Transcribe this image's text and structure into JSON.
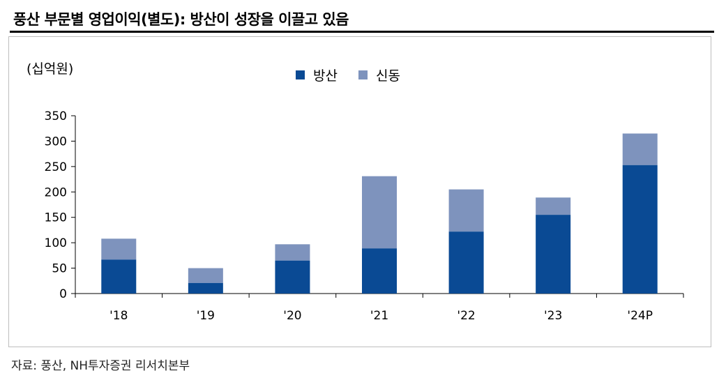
{
  "title": "풍산 부문별 영업이익(별도): 방산이 성장을 이끌고 있음",
  "source": "자료: 풍산, NH투자증권 리서치본부",
  "colors": {
    "defense": "#0a4a94",
    "copper": "#7e93bd"
  },
  "chart_data": {
    "type": "bar",
    "stacked": true,
    "unit_label": "(십억원)",
    "categories": [
      "'18",
      "'19",
      "'20",
      "'21",
      "'22",
      "'23",
      "'24P"
    ],
    "series": [
      {
        "name": "방산",
        "values": [
          67,
          21,
          65,
          89,
          122,
          155,
          253
        ]
      },
      {
        "name": "신동",
        "values": [
          41,
          29,
          32,
          142,
          83,
          34,
          62
        ]
      }
    ],
    "ylim": [
      0,
      350
    ],
    "yticks": [
      "0",
      "50",
      "100",
      "150",
      "200",
      "250",
      "300",
      "350"
    ],
    "legend_position": "top-center",
    "grid": false
  }
}
